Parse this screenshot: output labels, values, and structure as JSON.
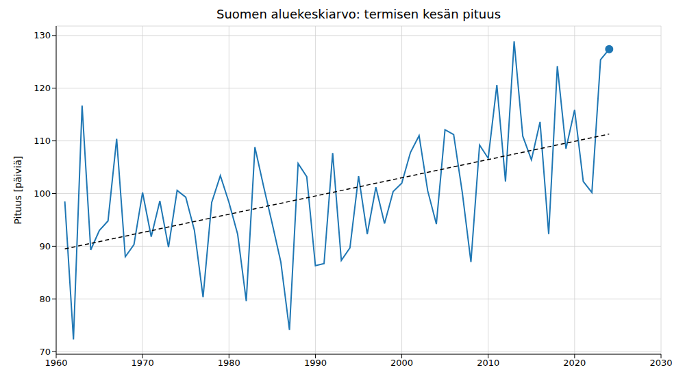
{
  "chart_data": {
    "type": "line",
    "title": "Suomen aluekeskiarvo: termisen kesän pituus",
    "y_label": "Pituus [päiviä]",
    "x": [
      1961,
      1962,
      1963,
      1964,
      1965,
      1966,
      1967,
      1968,
      1969,
      1970,
      1971,
      1972,
      1973,
      1974,
      1975,
      1976,
      1977,
      1978,
      1979,
      1980,
      1981,
      1982,
      1983,
      1984,
      1985,
      1986,
      1987,
      1988,
      1989,
      1990,
      1991,
      1992,
      1993,
      1994,
      1995,
      1996,
      1997,
      1998,
      1999,
      2000,
      2001,
      2002,
      2003,
      2004,
      2005,
      2006,
      2007,
      2008,
      2009,
      2010,
      2011,
      2012,
      2013,
      2014,
      2015,
      2016,
      2017,
      2018,
      2019,
      2020,
      2021,
      2022,
      2023,
      2024
    ],
    "series": [
      {
        "type": "line",
        "color": "#1f77b4",
        "line_style": "solid",
        "values": [
          98.5,
          72.3,
          116.7,
          89.3,
          93.0,
          94.8,
          110.4,
          88.0,
          90.3,
          100.2,
          91.8,
          98.6,
          89.8,
          100.6,
          99.3,
          93.0,
          80.3,
          98.3,
          103.4,
          98.3,
          92.3,
          79.6,
          108.8,
          101.4,
          94.3,
          87.0,
          74.1,
          105.7,
          103.2,
          86.3,
          86.7,
          107.7,
          87.3,
          89.7,
          103.3,
          92.3,
          101.2,
          94.3,
          100.4,
          102.0,
          107.8,
          111.0,
          100.5,
          94.2,
          112.1,
          111.2,
          100.2,
          87.0,
          109.2,
          106.7,
          120.6,
          102.3,
          128.9,
          110.9,
          106.4,
          113.6,
          92.3,
          124.2,
          108.5,
          115.9,
          102.3,
          100.2,
          125.4,
          127.4
        ]
      },
      {
        "type": "line",
        "color": "#000000",
        "line_style": "dashed",
        "x": [
          1961,
          2024
        ],
        "values": [
          89.5,
          111.3
        ]
      },
      {
        "type": "scatter",
        "color": "#1f77b4",
        "marker": "circle",
        "x": [
          2024
        ],
        "values": [
          127.4
        ]
      }
    ],
    "xlim": [
      1960,
      2030
    ],
    "xticks": [
      1960,
      1970,
      1980,
      1990,
      2000,
      2010,
      2020,
      2030
    ],
    "ylim": [
      69.5,
      131.8
    ],
    "yticks": [
      70,
      80,
      90,
      100,
      110,
      120,
      130
    ],
    "grid": true
  }
}
